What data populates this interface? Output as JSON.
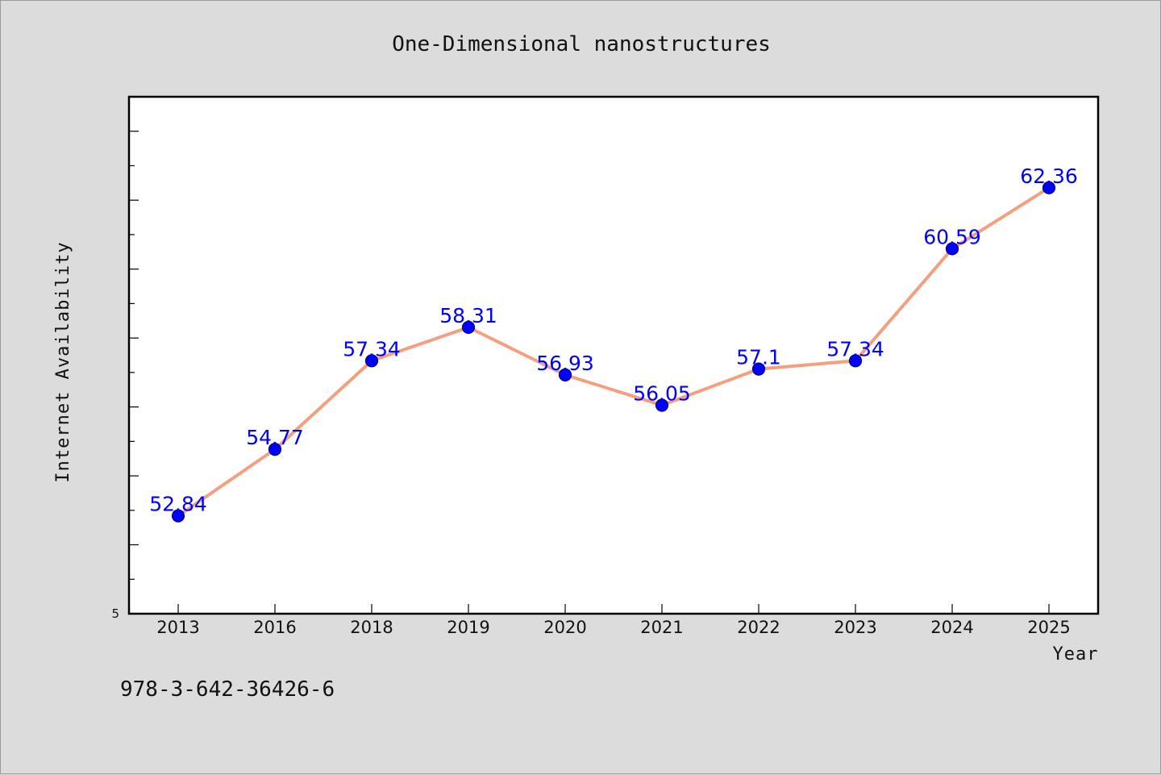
{
  "chart_data": {
    "type": "line",
    "title": "One-Dimensional nanostructures",
    "xlabel": "Year",
    "ylabel": "Internet Availability",
    "categories": [
      "2013",
      "2016",
      "2018",
      "2019",
      "2020",
      "2021",
      "2022",
      "2023",
      "2024",
      "2025"
    ],
    "series": [
      {
        "values": [
          52.84,
          54.77,
          57.34,
          58.31,
          56.93,
          56.05,
          57.1,
          57.34,
          60.59,
          62.36
        ],
        "data_labels": [
          "52.84",
          "54.77",
          "57.34",
          "58.31",
          "56.93",
          "56.05",
          "57.1",
          "57.34",
          "60.59",
          "62.36"
        ]
      }
    ],
    "ylim": [
      50,
      65
    ],
    "yticks": [
      50,
      52,
      54,
      56,
      58,
      60,
      62,
      64
    ],
    "yminor_step": 1,
    "ytick_labels_shown": [
      "5"
    ],
    "grid": false,
    "legend": "none",
    "colors": {
      "line": "#f4a080",
      "marker": "#0000ff",
      "data_label": "#0000ff",
      "background": "#dcdcdc",
      "plot_background": "#ffffff"
    }
  },
  "caption": "978-3-642-36426-6"
}
